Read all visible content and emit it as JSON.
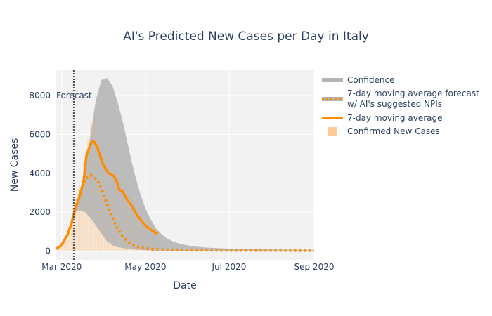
{
  "chart_data": {
    "type": "line",
    "title": "AI's Predicted New Cases per Day in Italy",
    "xlabel": "Date",
    "ylabel": "New Cases",
    "x_range": [
      "2020-02-26",
      "2020-09-01"
    ],
    "ylim": [
      -450,
      9300
    ],
    "x_ticks": [
      {
        "date": "2020-03-01",
        "label": "Mar 2020"
      },
      {
        "date": "2020-05-01",
        "label": "May 2020"
      },
      {
        "date": "2020-07-01",
        "label": "Jul 2020"
      },
      {
        "date": "2020-09-01",
        "label": "Sep 2020"
      }
    ],
    "y_ticks": [
      0,
      2000,
      4000,
      6000,
      8000
    ],
    "grid": true,
    "legend_position": "right",
    "forecast_annotation": {
      "date": "2020-03-10",
      "label": "Forecast"
    },
    "colors": {
      "background": "#f2f2f2",
      "confidence": "#b3b3b3",
      "actual_line": "#ff8c00",
      "forecast_line": "#ff8c00",
      "bars": "#ffcc99",
      "forecast_marker": "#555555"
    },
    "series": [
      {
        "name": "Confidence",
        "kind": "band"
      },
      {
        "name": "7-day moving average forecast w/ AI's suggested NPIs",
        "kind": "dotted-line"
      },
      {
        "name": "7-day moving average",
        "kind": "line"
      },
      {
        "name": "Confirmed New Cases",
        "kind": "bar"
      }
    ],
    "confidence": {
      "x": [
        "2020-03-10",
        "2020-03-14",
        "2020-03-18",
        "2020-03-22",
        "2020-03-26",
        "2020-03-30",
        "2020-04-03",
        "2020-04-07",
        "2020-04-11",
        "2020-04-15",
        "2020-04-19",
        "2020-04-23",
        "2020-04-27",
        "2020-05-01",
        "2020-05-05",
        "2020-05-09",
        "2020-05-13",
        "2020-05-17",
        "2020-05-21",
        "2020-05-25",
        "2020-05-29",
        "2020-06-05",
        "2020-06-15",
        "2020-06-30",
        "2020-07-15",
        "2020-08-01",
        "2020-08-15",
        "2020-09-01"
      ],
      "upper": [
        2200,
        2900,
        4000,
        6000,
        7800,
        8800,
        8900,
        8500,
        7600,
        6500,
        5200,
        4000,
        3000,
        2200,
        1600,
        1150,
        850,
        640,
        500,
        400,
        330,
        240,
        180,
        130,
        100,
        80,
        65,
        55
      ],
      "lower": [
        2000,
        2100,
        2000,
        1700,
        1300,
        900,
        500,
        300,
        200,
        150,
        100,
        80,
        60,
        50,
        40,
        30,
        25,
        20,
        15,
        12,
        10,
        8,
        6,
        5,
        4,
        3,
        2,
        2
      ]
    },
    "forecast": {
      "x": [
        "2020-03-10",
        "2020-03-13",
        "2020-03-16",
        "2020-03-19",
        "2020-03-22",
        "2020-03-25",
        "2020-03-28",
        "2020-03-31",
        "2020-04-03",
        "2020-04-06",
        "2020-04-09",
        "2020-04-12",
        "2020-04-15",
        "2020-04-18",
        "2020-04-21",
        "2020-04-24",
        "2020-04-27",
        "2020-04-30",
        "2020-05-05",
        "2020-05-10",
        "2020-05-15",
        "2020-05-25",
        "2020-06-05",
        "2020-06-20",
        "2020-07-10",
        "2020-08-01",
        "2020-09-01"
      ],
      "y": [
        2100,
        2700,
        3300,
        3750,
        3900,
        3800,
        3500,
        3000,
        2450,
        1900,
        1400,
        1000,
        700,
        480,
        340,
        240,
        180,
        140,
        100,
        80,
        65,
        55,
        50,
        45,
        40,
        38,
        35
      ]
    },
    "moving_average": {
      "x": [
        "2020-02-26",
        "2020-02-29",
        "2020-03-02",
        "2020-03-05",
        "2020-03-08",
        "2020-03-11",
        "2020-03-14",
        "2020-03-17",
        "2020-03-19",
        "2020-03-21",
        "2020-03-23",
        "2020-03-25",
        "2020-03-27",
        "2020-03-29",
        "2020-03-31",
        "2020-04-02",
        "2020-04-04",
        "2020-04-06",
        "2020-04-08",
        "2020-04-10",
        "2020-04-12",
        "2020-04-14",
        "2020-04-16",
        "2020-04-18",
        "2020-04-20",
        "2020-04-22",
        "2020-04-24",
        "2020-04-26",
        "2020-04-28",
        "2020-04-30",
        "2020-05-02",
        "2020-05-04",
        "2020-05-06",
        "2020-05-08",
        "2020-05-10"
      ],
      "y": [
        120,
        250,
        450,
        800,
        1400,
        2200,
        2800,
        3600,
        4900,
        5300,
        5650,
        5600,
        5300,
        4900,
        4450,
        4250,
        4000,
        3950,
        3850,
        3600,
        3150,
        3100,
        2850,
        2600,
        2450,
        2200,
        1950,
        1750,
        1550,
        1400,
        1250,
        1150,
        1050,
        950,
        900
      ]
    }
  }
}
